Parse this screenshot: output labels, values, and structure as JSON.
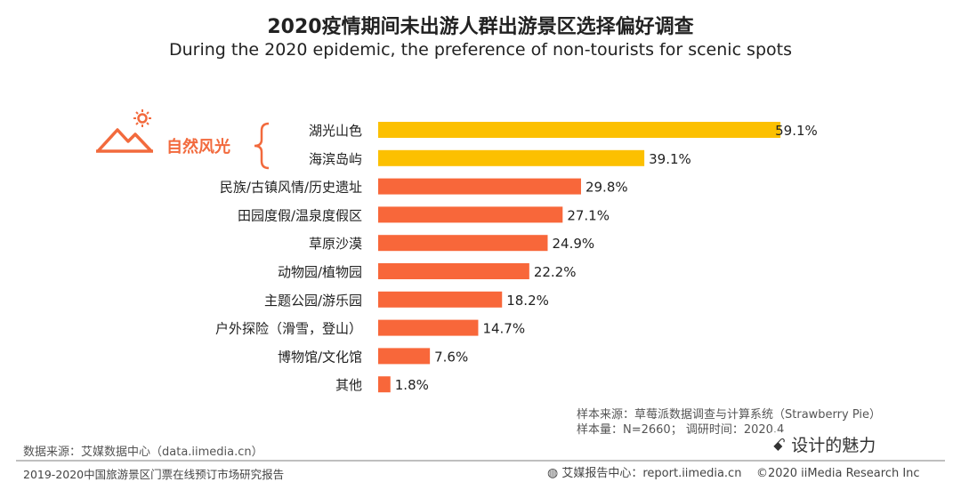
{
  "header": {
    "title_cn": "2020疫情期间未出游人群出游景区选择偏好调查",
    "title_en": "During the 2020 epidemic, the preference of non-tourists for scenic spots"
  },
  "group": {
    "label": "自然风光",
    "icon": "mountain-sun-icon"
  },
  "colors": {
    "highlight": "#fcc000",
    "normal": "#f8673a",
    "accent_text": "#f26a3d"
  },
  "chart_data": {
    "type": "bar",
    "orientation": "horizontal",
    "title": "2020疫情期间未出游人群出游景区选择偏好调查",
    "categories": [
      "湖光山色",
      "海滨岛屿",
      "民族/古镇风情/历史遗址",
      "田园度假/温泉度假区",
      "草原沙漠",
      "动物园/植物园",
      "主题公园/游乐园",
      "户外探险（滑雪，登山）",
      "博物馆/文化馆",
      "其他"
    ],
    "values": [
      59.1,
      39.1,
      29.8,
      27.1,
      24.9,
      22.2,
      18.2,
      14.7,
      7.6,
      1.8
    ],
    "labels": [
      "59.1%",
      "39.1%",
      "29.8%",
      "27.1%",
      "24.9%",
      "22.2%",
      "18.2%",
      "14.7%",
      "7.6%",
      "1.8%"
    ],
    "highlighted": [
      true,
      true,
      false,
      false,
      false,
      false,
      false,
      false,
      false,
      false
    ],
    "xlim": [
      0,
      60
    ],
    "unit": "%"
  },
  "notes": {
    "sample_source": "样本来源：草莓派数据调查与计算系统（Strawberry Pie）",
    "sample_size": "样本量：N=2660；  调研时间：2020.4",
    "data_source": "数据来源：艾媒数据中心（data.iimedia.cn）"
  },
  "footer": {
    "report_title": "2019-2020中国旅游景区门票在线预订市场研究报告",
    "center_label": "艾媒报告中心：report.iimedia.cn",
    "copyright": "©2020  iiMedia Research  Inc",
    "watermark": "设计的魅力"
  }
}
